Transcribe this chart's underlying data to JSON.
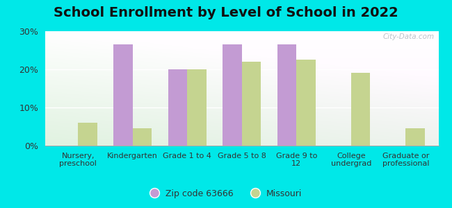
{
  "title": "School Enrollment by Level of School in 2022",
  "categories": [
    "Nursery,\npreschool",
    "Kindergarten",
    "Grade 1 to 4",
    "Grade 5 to 8",
    "Grade 9 to\n12",
    "College\nundergrad",
    "Graduate or\nprofessional"
  ],
  "zip_values": [
    0,
    26.5,
    20.0,
    26.5,
    26.5,
    0,
    0
  ],
  "mo_values": [
    6.0,
    4.5,
    20.0,
    22.0,
    22.5,
    19.0,
    4.5
  ],
  "zip_color": "#c39bd3",
  "mo_color": "#c5d490",
  "background_outer": "#00e8e8",
  "ylim": [
    0,
    30
  ],
  "yticks": [
    0,
    10,
    20,
    30
  ],
  "ytick_labels": [
    "0%",
    "10%",
    "20%",
    "30%"
  ],
  "legend_zip_label": "Zip code 63666",
  "legend_mo_label": "Missouri",
  "bar_width": 0.35,
  "title_fontsize": 14,
  "watermark": "City-Data.com"
}
